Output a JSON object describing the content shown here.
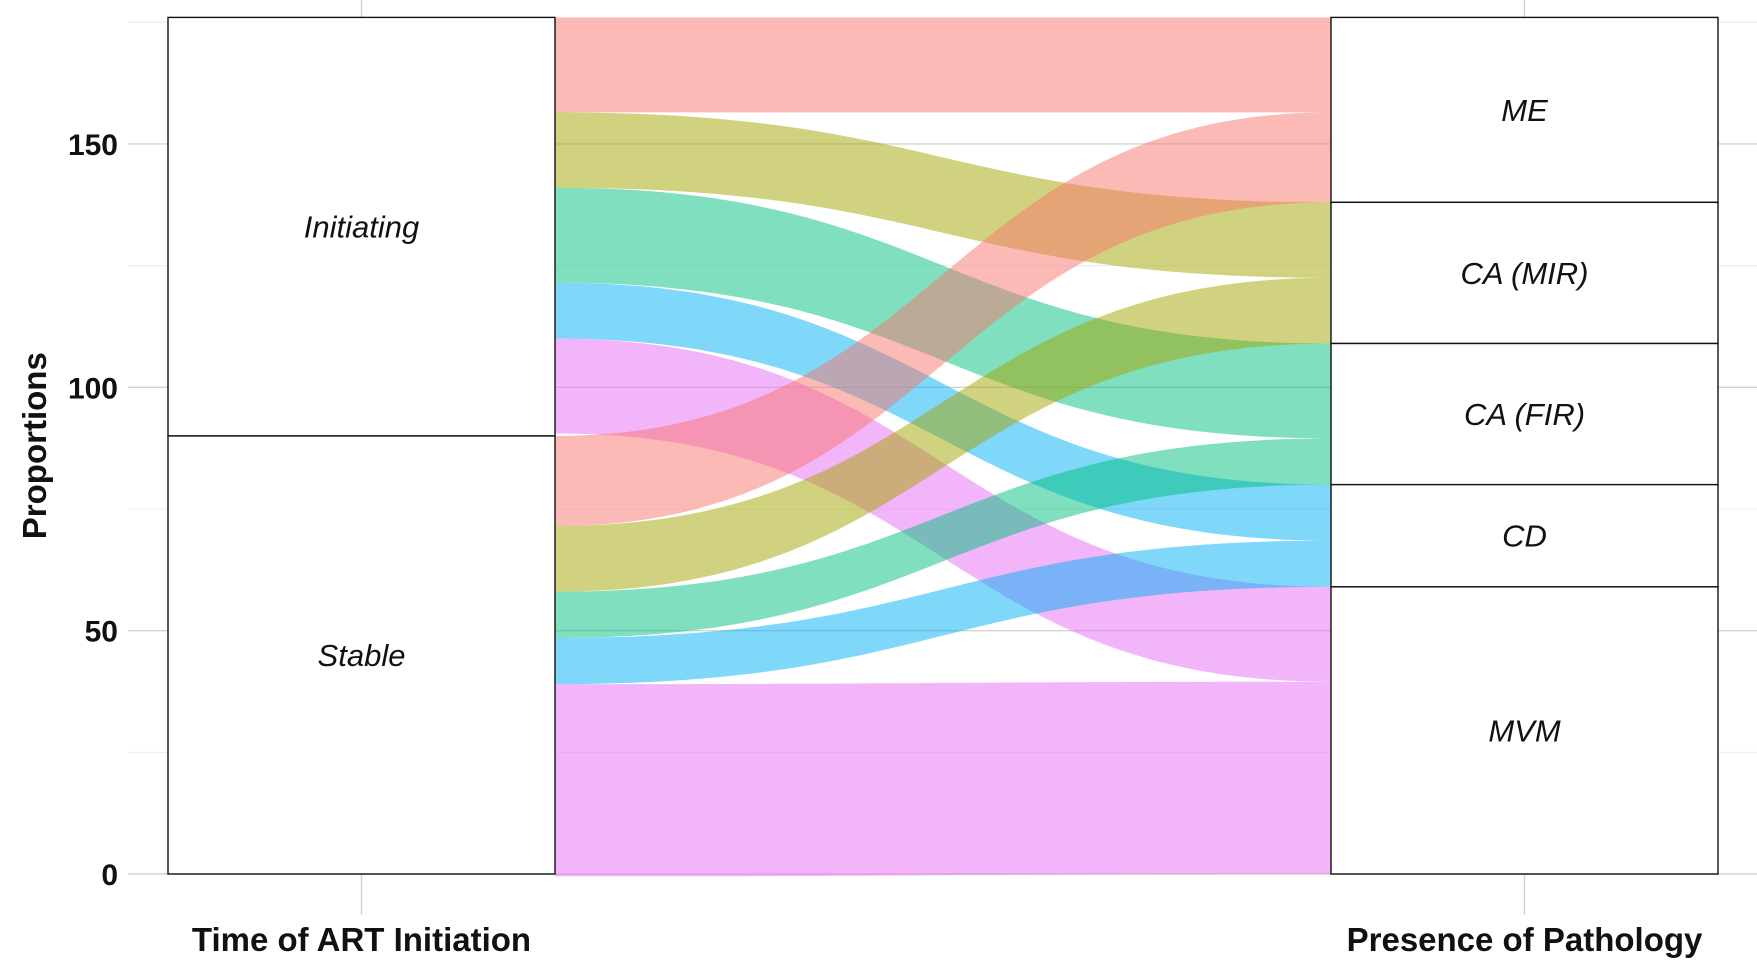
{
  "chart_data": {
    "type": "alluvial",
    "ylabel": "Proportions",
    "yticks": [
      0,
      50,
      100,
      150
    ],
    "ylim": [
      0,
      176
    ],
    "grid": true,
    "axes": [
      {
        "title": "Time of ART Initiation",
        "strata": [
          {
            "label": "Initiating",
            "value": 86
          },
          {
            "label": "Stable",
            "value": 90
          }
        ]
      },
      {
        "title": "Presence of Pathology",
        "strata": [
          {
            "label": "ME",
            "value": 38
          },
          {
            "label": "CA (MIR)",
            "value": 29
          },
          {
            "label": "CA (FIR)",
            "value": 29
          },
          {
            "label": "CD",
            "value": 21
          },
          {
            "label": "MVM",
            "value": 59
          }
        ]
      }
    ],
    "flow_colors": {
      "ME": "#F8766D",
      "CA (MIR)": "#A3A500",
      "CA (FIR)": "#00BF7D",
      "CD": "#00B0F6",
      "MVM": "#E76BF3"
    },
    "flows": [
      {
        "from": "Initiating",
        "to": "ME",
        "value": 19.5
      },
      {
        "from": "Initiating",
        "to": "CA (MIR)",
        "value": 15.5
      },
      {
        "from": "Initiating",
        "to": "CA (FIR)",
        "value": 19.5
      },
      {
        "from": "Initiating",
        "to": "CD",
        "value": 11.5
      },
      {
        "from": "Initiating",
        "to": "MVM",
        "value": 19.5
      },
      {
        "from": "Stable",
        "to": "ME",
        "value": 18.5
      },
      {
        "from": "Stable",
        "to": "CA (MIR)",
        "value": 13.5
      },
      {
        "from": "Stable",
        "to": "CA (FIR)",
        "value": 9.5
      },
      {
        "from": "Stable",
        "to": "CD",
        "value": 9.5
      },
      {
        "from": "Stable",
        "to": "MVM",
        "value": 39.5
      }
    ]
  }
}
